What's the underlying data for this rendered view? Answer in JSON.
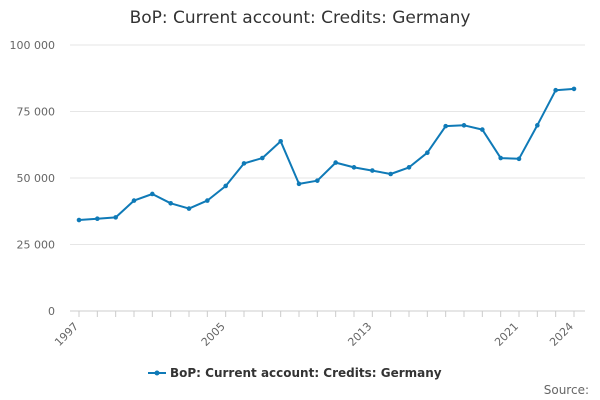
{
  "chart_data": {
    "type": "line",
    "title": "BoP: Current account: Credits: Germany",
    "xlabel": "",
    "ylabel": "",
    "x": [
      1997,
      1998,
      1999,
      2000,
      2001,
      2002,
      2003,
      2004,
      2005,
      2006,
      2007,
      2008,
      2009,
      2010,
      2011,
      2012,
      2013,
      2014,
      2015,
      2016,
      2017,
      2018,
      2019,
      2020,
      2021,
      2022,
      2023,
      2024
    ],
    "series": [
      {
        "name": "BoP: Current account: Credits: Germany",
        "values": [
          34200,
          34700,
          35200,
          41500,
          44000,
          40500,
          38500,
          41500,
          47000,
          55500,
          57500,
          63800,
          47800,
          49000,
          55800,
          54000,
          52800,
          51500,
          54000,
          59500,
          69500,
          69800,
          68200,
          57500,
          57200,
          69800,
          83000,
          83500
        ]
      }
    ],
    "xticks": [
      1997,
      2005,
      2013,
      2021,
      2024
    ],
    "yticks": [
      0,
      25000,
      50000,
      75000,
      100000
    ],
    "ytick_labels": [
      "0",
      "25 000",
      "50 000",
      "75 000",
      "100 000"
    ],
    "ylim": [
      0,
      100000
    ],
    "xlim": [
      1997,
      2024
    ],
    "grid": "horizontal",
    "legend_position": "bottom",
    "source_label": "Source:",
    "colors": {
      "series": "#0f7ab7",
      "grid": "#e6e6e6",
      "axis": "#cccccc"
    }
  }
}
